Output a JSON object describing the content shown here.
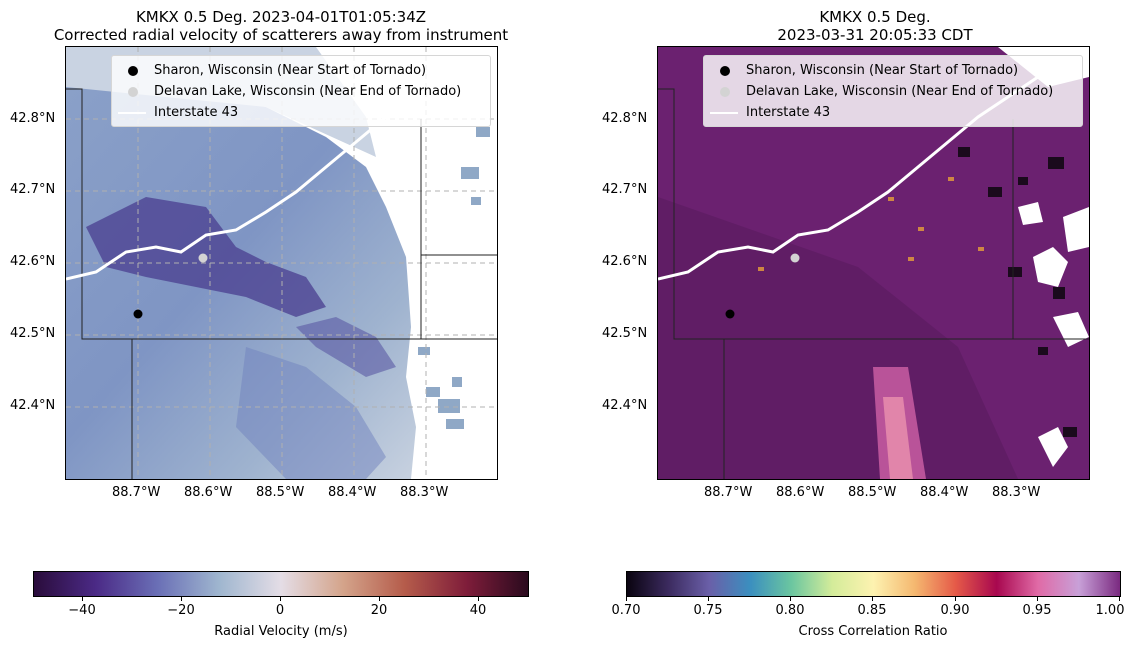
{
  "left_panel": {
    "title_line1": "KMKX 0.5 Deg. 2023-04-01T01:05:34Z",
    "title_line2": "Corrected radial velocity of scatterers away from instrument"
  },
  "right_panel": {
    "title_line1": "KMKX 0.5 Deg.",
    "title_line2": "2023-03-31 20:05:33 CDT"
  },
  "legend": {
    "items": [
      {
        "label": "Sharon, Wisconsin (Near Start of Tornado)",
        "color": "#000000",
        "kind": "point"
      },
      {
        "label": "Delavan Lake, Wisconsin (Near End of Tornado)",
        "color": "#d3d3d3",
        "kind": "point"
      },
      {
        "label": "Interstate 43",
        "color": "#ffffff",
        "kind": "line"
      }
    ]
  },
  "lat_ticks": [
    "42.8°N",
    "42.7°N",
    "42.6°N",
    "42.5°N",
    "42.4°N"
  ],
  "lon_ticks": [
    "88.7°W",
    "88.6°W",
    "88.5°W",
    "88.4°W",
    "88.3°W"
  ],
  "points": {
    "sharon": {
      "lon": -88.728,
      "lat": 42.502
    },
    "delavan": {
      "lon": -88.6,
      "lat": 42.582
    }
  },
  "extent": {
    "lon_min": -88.8,
    "lon_max": -88.2,
    "lat_min": 42.3,
    "lat_max": 42.9
  },
  "colorbar_velocity": {
    "label": "Radial Velocity (m/s)",
    "ticks": [
      "−40",
      "−20",
      "0",
      "20",
      "40"
    ],
    "tick_values": [
      -40,
      -20,
      0,
      20,
      40
    ],
    "range": [
      -50,
      50
    ],
    "colormap": "balance"
  },
  "colorbar_cc": {
    "label": "Cross Correlation Ratio",
    "ticks": [
      "0.70",
      "0.75",
      "0.80",
      "0.85",
      "0.90",
      "0.95",
      "1.00"
    ],
    "tick_values": [
      0.7,
      0.75,
      0.8,
      0.85,
      0.9,
      0.95,
      1.0
    ],
    "range": [
      0.7,
      1.0
    ],
    "colormap": "spectral-cc"
  }
}
